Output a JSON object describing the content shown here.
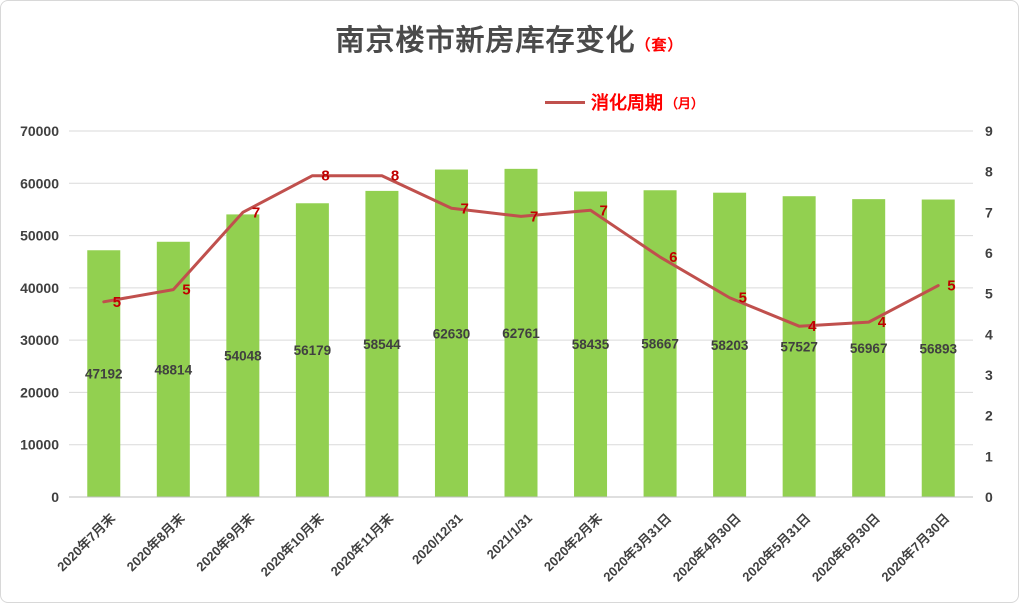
{
  "title": {
    "main": "南京楼市新房库存变化",
    "unit": "（套）"
  },
  "legend": {
    "label": "消化周期",
    "unit": "（月）"
  },
  "chart_data": {
    "type": "bar",
    "subtype": "combo-bar-line",
    "title": "南京楼市新房库存变化（套）",
    "legend_entries": [
      "消化周期（月）"
    ],
    "legend_position": "top-center-right",
    "grid": true,
    "categories": [
      "2020年7月末",
      "2020年8月末",
      "2020年9月末",
      "2020年10月末",
      "2020年11月末",
      "2020/12/31",
      "2021/1/31",
      "2020年2月末",
      "2020年3月31日",
      "2020年4月30日",
      "2020年5月31日",
      "2020年6月30日",
      "2020年7月30日"
    ],
    "series": [
      {
        "name": "新房库存",
        "chart": "bar",
        "axis": "left",
        "values": [
          47192,
          48814,
          54048,
          56179,
          58544,
          62630,
          62761,
          58435,
          58667,
          58203,
          57527,
          56967,
          56893
        ]
      },
      {
        "name": "消化周期",
        "chart": "line",
        "axis": "right",
        "labels": [
          5,
          5,
          7,
          8,
          8,
          7,
          7,
          7,
          6,
          5,
          4,
          4,
          5
        ],
        "values": [
          4.8,
          5.1,
          7.0,
          7.9,
          7.9,
          7.1,
          6.9,
          7.05,
          5.9,
          4.9,
          4.2,
          4.3,
          5.2
        ]
      }
    ],
    "left_axis": {
      "min": 0,
      "max": 70000,
      "step": 10000,
      "ticks": [
        "0",
        "10000",
        "20000",
        "30000",
        "40000",
        "50000",
        "60000",
        "70000"
      ]
    },
    "right_axis": {
      "min": 0,
      "max": 9,
      "step": 1,
      "ticks": [
        "0",
        "1",
        "2",
        "3",
        "4",
        "5",
        "6",
        "7",
        "8",
        "9"
      ]
    },
    "colors": {
      "bar": "#92d050",
      "line": "#c0504d",
      "line_label": "#c00000",
      "legend_text": "#ff0000",
      "title_text": "#4a4a4a",
      "title_unit": "#ff0000",
      "axis_text": "#404040",
      "bar_label": "#404040",
      "grid": "#dadada",
      "axis_line": "#bfbfbf"
    }
  }
}
